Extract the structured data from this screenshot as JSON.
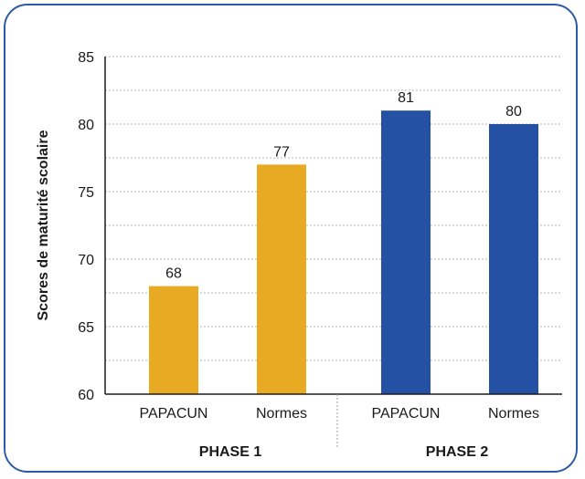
{
  "chart_data": {
    "type": "bar",
    "ylabel": "Scores de maturité scolaire",
    "ylim": [
      60,
      85
    ],
    "yticks": [
      60,
      65,
      70,
      75,
      80,
      85
    ],
    "grid": true,
    "groups": [
      {
        "label": "PHASE 1",
        "bars": [
          {
            "category": "PAPACUN",
            "value": 68,
            "value_label": "68",
            "color": "#e8aa22"
          },
          {
            "category": "Normes",
            "value": 77,
            "value_label": "77",
            "color": "#e8aa22"
          }
        ]
      },
      {
        "label": "PHASE 2",
        "bars": [
          {
            "category": "PAPACUN",
            "value": 81,
            "value_label": "81",
            "color": "#2451a3"
          },
          {
            "category": "Normes",
            "value": 80,
            "value_label": "80",
            "color": "#2451a3"
          }
        ]
      }
    ]
  }
}
